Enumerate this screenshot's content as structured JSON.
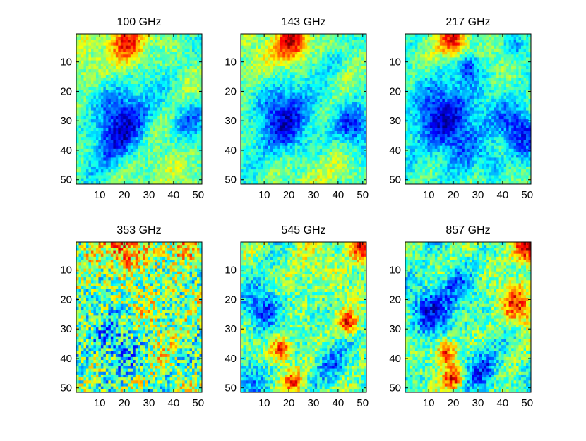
{
  "chart_data": [
    {
      "type": "heatmap",
      "title": "100 GHz",
      "x_ticks": [
        "10",
        "20",
        "30",
        "40",
        "50"
      ],
      "y_ticks": [
        "10",
        "20",
        "30",
        "40",
        "50"
      ],
      "xlim": [
        1,
        51
      ],
      "ylim": [
        1,
        51
      ],
      "colormap": "jet",
      "features": [
        {
          "x": 21,
          "y": 3,
          "amp": 1.4,
          "r": 5
        },
        {
          "x": 20,
          "y": 28,
          "amp": -0.9,
          "r": 8
        },
        {
          "x": 14,
          "y": 38,
          "amp": -0.6,
          "r": 6
        },
        {
          "x": 47,
          "y": 30,
          "amp": -0.6,
          "r": 4
        },
        {
          "x": 35,
          "y": 48,
          "amp": 0.4,
          "r": 6
        },
        {
          "x": 5,
          "y": 12,
          "amp": 0.4,
          "r": 6
        }
      ]
    },
    {
      "type": "heatmap",
      "title": "143 GHz",
      "x_ticks": [
        "10",
        "20",
        "30",
        "40",
        "50"
      ],
      "y_ticks": [
        "10",
        "20",
        "30",
        "40",
        "50"
      ],
      "xlim": [
        1,
        51
      ],
      "ylim": [
        1,
        51
      ],
      "colormap": "jet",
      "features": [
        {
          "x": 21,
          "y": 3,
          "amp": 1.5,
          "r": 5
        },
        {
          "x": 19,
          "y": 30,
          "amp": -1.0,
          "r": 9
        },
        {
          "x": 47,
          "y": 32,
          "amp": -0.8,
          "r": 5
        },
        {
          "x": 38,
          "y": 10,
          "amp": -0.4,
          "r": 3
        },
        {
          "x": 30,
          "y": 47,
          "amp": 0.5,
          "r": 6
        },
        {
          "x": 5,
          "y": 10,
          "amp": 0.4,
          "r": 6
        }
      ]
    },
    {
      "type": "heatmap",
      "title": "217 GHz",
      "x_ticks": [
        "10",
        "20",
        "30",
        "40",
        "50"
      ],
      "y_ticks": [
        "10",
        "20",
        "30",
        "40",
        "50"
      ],
      "xlim": [
        1,
        51
      ],
      "ylim": [
        1,
        51
      ],
      "colormap": "jet",
      "features": [
        {
          "x": 20,
          "y": 3,
          "amp": 1.4,
          "r": 4
        },
        {
          "x": 18,
          "y": 30,
          "amp": -1.1,
          "r": 10
        },
        {
          "x": 47,
          "y": 33,
          "amp": -1.0,
          "r": 6
        },
        {
          "x": 26,
          "y": 12,
          "amp": -0.7,
          "r": 3
        },
        {
          "x": 36,
          "y": 44,
          "amp": -0.6,
          "r": 3
        },
        {
          "x": 45,
          "y": 5,
          "amp": -0.5,
          "r": 3
        }
      ]
    },
    {
      "type": "heatmap",
      "title": "353 GHz",
      "x_ticks": [
        "10",
        "20",
        "30",
        "40",
        "50"
      ],
      "y_ticks": [
        "10",
        "20",
        "30",
        "40",
        "50"
      ],
      "xlim": [
        1,
        51
      ],
      "ylim": [
        1,
        51
      ],
      "colormap": "jet",
      "features": [
        {
          "x": 20,
          "y": 3,
          "amp": 1.0,
          "r": 5
        },
        {
          "x": 45,
          "y": 2,
          "amp": 0.8,
          "r": 4
        },
        {
          "x": 16,
          "y": 32,
          "amp": -0.5,
          "r": 9
        },
        {
          "x": 30,
          "y": 25,
          "amp": 0.35,
          "r": 7
        },
        {
          "x": 5,
          "y": 20,
          "amp": 0.3,
          "r": 5
        }
      ]
    },
    {
      "type": "heatmap",
      "title": "545 GHz",
      "x_ticks": [
        "10",
        "20",
        "30",
        "40",
        "50"
      ],
      "y_ticks": [
        "10",
        "20",
        "30",
        "40",
        "50"
      ],
      "xlim": [
        1,
        51
      ],
      "ylim": [
        1,
        51
      ],
      "colormap": "jet",
      "features": [
        {
          "x": 50,
          "y": 2,
          "amp": 1.4,
          "r": 4
        },
        {
          "x": 44,
          "y": 28,
          "amp": 1.2,
          "r": 3
        },
        {
          "x": 17,
          "y": 37,
          "amp": 1.3,
          "r": 3
        },
        {
          "x": 22,
          "y": 48,
          "amp": 1.0,
          "r": 3
        },
        {
          "x": 10,
          "y": 23,
          "amp": -0.9,
          "r": 5
        },
        {
          "x": 37,
          "y": 42,
          "amp": -0.7,
          "r": 4
        },
        {
          "x": 5,
          "y": 47,
          "amp": -0.6,
          "r": 4
        },
        {
          "x": 30,
          "y": 10,
          "amp": 0.3,
          "r": 8
        }
      ]
    },
    {
      "type": "heatmap",
      "title": "857 GHz",
      "x_ticks": [
        "10",
        "20",
        "30",
        "40",
        "50"
      ],
      "y_ticks": [
        "10",
        "20",
        "30",
        "40",
        "50"
      ],
      "xlim": [
        1,
        51
      ],
      "ylim": [
        1,
        51
      ],
      "colormap": "jet",
      "features": [
        {
          "x": 50,
          "y": 2,
          "amp": 1.5,
          "r": 4
        },
        {
          "x": 46,
          "y": 22,
          "amp": 1.1,
          "r": 5
        },
        {
          "x": 17,
          "y": 38,
          "amp": 1.3,
          "r": 3
        },
        {
          "x": 20,
          "y": 47,
          "amp": 1.2,
          "r": 3
        },
        {
          "x": 12,
          "y": 23,
          "amp": -1.0,
          "r": 6
        },
        {
          "x": 32,
          "y": 44,
          "amp": -0.8,
          "r": 5
        },
        {
          "x": 22,
          "y": 15,
          "amp": -0.5,
          "r": 4
        }
      ]
    }
  ]
}
